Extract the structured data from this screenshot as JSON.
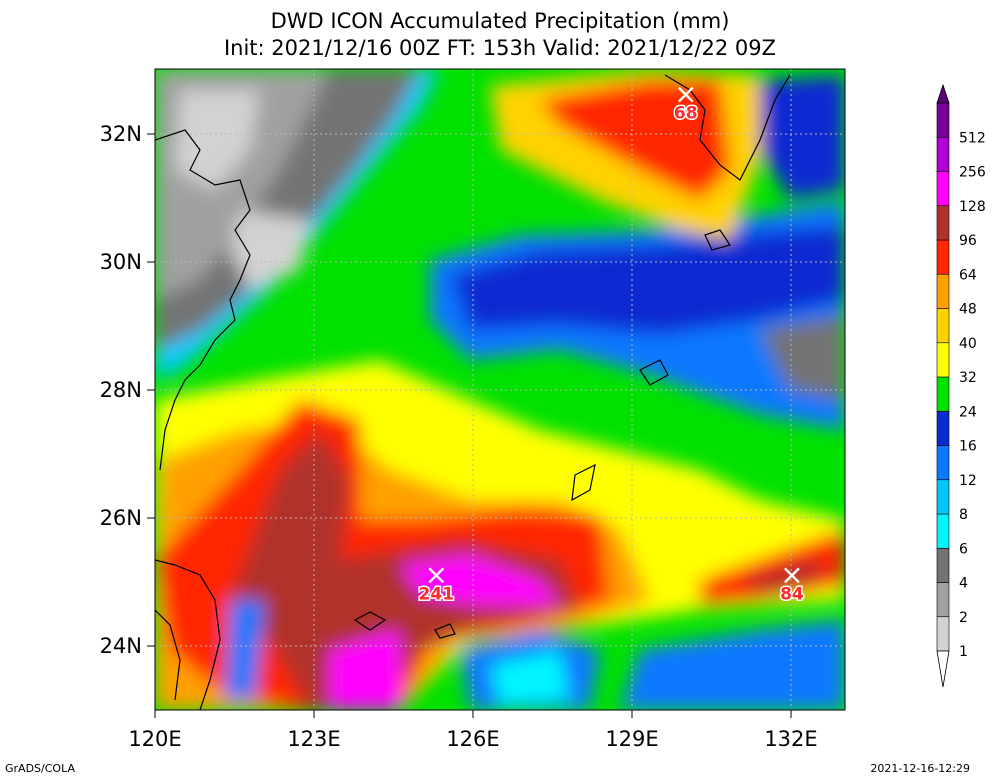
{
  "title_line1": "DWD ICON Accumulated Precipitation (mm)",
  "title_line2": "Init: 2021/12/16 00Z  FT: 153h  Valid: 2021/12/22 09Z",
  "lat_labels": [
    "24N",
    "26N",
    "28N",
    "30N",
    "32N"
  ],
  "lon_labels": [
    "120E",
    "123E",
    "126E",
    "129E",
    "132E"
  ],
  "colorbar": {
    "levels": [
      "1",
      "2",
      "4",
      "6",
      "8",
      "12",
      "16",
      "24",
      "32",
      "40",
      "48",
      "64",
      "96",
      "128",
      "256",
      "512"
    ],
    "colors": [
      "#d2d2d2",
      "#a0a0a0",
      "#737373",
      "#00f5ff",
      "#00c8ff",
      "#0a78ff",
      "#0a2ad2",
      "#00e100",
      "#ffff00",
      "#ffd200",
      "#ffa000",
      "#ff2800",
      "#b0302c",
      "#ff00ff",
      "#b000d2",
      "#7a009a"
    ]
  },
  "maxima": [
    {
      "value": "241",
      "lon": 125.3,
      "lat": 25.1
    },
    {
      "value": "68",
      "lon": 130.0,
      "lat": 32.6
    },
    {
      "value": "84",
      "lon": 132.0,
      "lat": 25.1
    }
  ],
  "footer_left": "GrADS/COLA",
  "footer_right": "2021-12-16-12:29"
}
